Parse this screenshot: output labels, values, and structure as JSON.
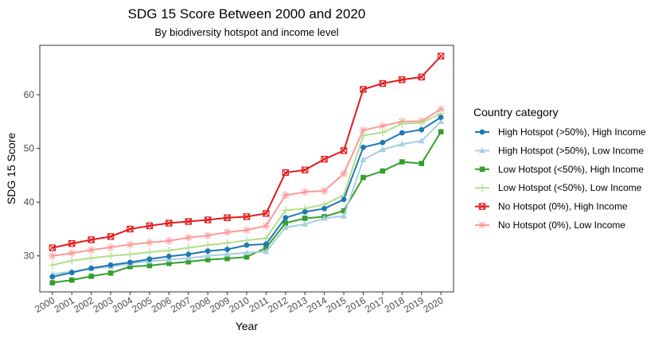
{
  "chart_data": {
    "type": "line",
    "title": "SDG 15 Score Between 2000 and 2020",
    "subtitle": "By biodiversity hotspot and income level",
    "xlabel": "Year",
    "ylabel": "SDG 15 Score",
    "x": [
      "2000",
      "2001",
      "2002",
      "2003",
      "2004",
      "2005",
      "2006",
      "2007",
      "2008",
      "2009",
      "2010",
      "2011",
      "2012",
      "2013",
      "2014",
      "2015",
      "2016",
      "2017",
      "2018",
      "2019",
      "2020"
    ],
    "xlim": [
      1999.35,
      2020.65
    ],
    "ylim": [
      23.3,
      69.2
    ],
    "yticks": [
      30,
      40,
      50,
      60
    ],
    "grid": false,
    "legend": {
      "title": "Country category",
      "position": "right"
    },
    "series": [
      {
        "name": "High Hotspot (>50%), High Income",
        "color": "#1f78b4",
        "marker": "circle",
        "values": [
          26.1,
          26.9,
          27.7,
          28.3,
          28.8,
          29.4,
          29.9,
          30.3,
          30.9,
          31.2,
          32.0,
          32.2,
          37.1,
          38.2,
          38.8,
          40.5,
          50.2,
          51.1,
          52.9,
          53.5,
          55.8
        ]
      },
      {
        "name": "High Hotspot (>50%), Low Income",
        "color": "#a6cee3",
        "marker": "triangle",
        "values": [
          26.6,
          27.1,
          27.6,
          28.0,
          28.6,
          29.0,
          29.3,
          29.6,
          30.0,
          30.3,
          30.6,
          30.8,
          35.3,
          35.9,
          37.0,
          37.4,
          47.9,
          49.8,
          50.8,
          51.4,
          55.0
        ]
      },
      {
        "name": "Low Hotspot (<50%), High Income",
        "color": "#33a02c",
        "marker": "square",
        "values": [
          25.0,
          25.5,
          26.2,
          26.8,
          28.0,
          28.2,
          28.6,
          28.9,
          29.3,
          29.5,
          29.8,
          31.5,
          36.1,
          37.0,
          37.3,
          38.4,
          44.6,
          45.8,
          47.5,
          47.2,
          53.1
        ]
      },
      {
        "name": "Low Hotspot (<50%), Low Income",
        "color": "#b2df8a",
        "marker": "plus",
        "values": [
          28.3,
          29.1,
          29.6,
          30.0,
          30.3,
          30.7,
          31.0,
          31.5,
          32.0,
          32.4,
          32.9,
          33.3,
          38.5,
          38.8,
          39.6,
          41.3,
          52.4,
          53.0,
          54.6,
          54.8,
          56.5
        ]
      },
      {
        "name": "No Hotspot (0%), High Income",
        "color": "#e31a1c",
        "marker": "square-x",
        "values": [
          31.5,
          32.3,
          33.0,
          33.6,
          35.0,
          35.6,
          36.1,
          36.4,
          36.7,
          37.1,
          37.3,
          37.9,
          45.5,
          46.0,
          48.0,
          49.6,
          61.0,
          62.1,
          62.8,
          63.3,
          67.2
        ]
      },
      {
        "name": "No Hotspot (0%), Low Income",
        "color": "#fb9a99",
        "marker": "asterisk",
        "values": [
          30.0,
          30.5,
          31.1,
          31.6,
          32.1,
          32.5,
          32.8,
          33.4,
          33.8,
          34.4,
          34.8,
          35.6,
          41.3,
          41.9,
          42.1,
          45.3,
          53.4,
          54.2,
          55.0,
          55.1,
          57.3
        ]
      }
    ]
  }
}
